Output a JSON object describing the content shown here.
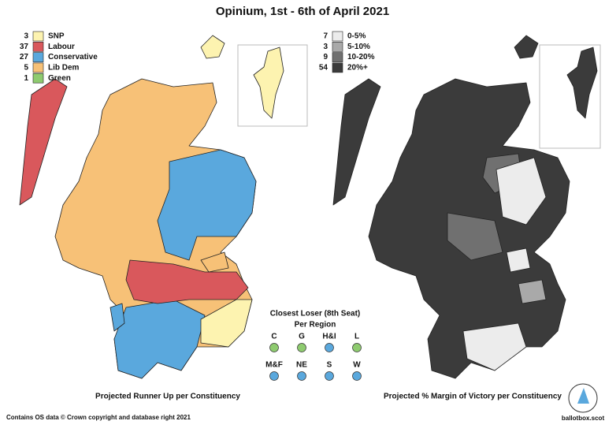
{
  "title": "Opinium, 1st - 6th of April 2021",
  "runner_up_legend": [
    {
      "count": 3,
      "label": "SNP",
      "color": "#fdf3b0"
    },
    {
      "count": 37,
      "label": "Labour",
      "color": "#d9585c"
    },
    {
      "count": 27,
      "label": "Conservative",
      "color": "#5aa8dd"
    },
    {
      "count": 5,
      "label": "Lib Dem",
      "color": "#f7c177"
    },
    {
      "count": 1,
      "label": "Green",
      "color": "#8ecb6f"
    }
  ],
  "margin_legend": [
    {
      "count": 7,
      "label": "0-5%",
      "color": "#ececec"
    },
    {
      "count": 3,
      "label": "5-10%",
      "color": "#a9a9a9"
    },
    {
      "count": 9,
      "label": "10-20%",
      "color": "#707070"
    },
    {
      "count": 54,
      "label": "20%+",
      "color": "#3b3b3b"
    }
  ],
  "runner_up_caption": "Projected Runner Up per Constituency",
  "margin_caption": "Projected % Margin of Victory per Constituency",
  "closest_loser": {
    "title": "Closest Loser (8th Seat)",
    "subtitle": "Per Region",
    "regions": [
      {
        "label": "C",
        "color": "#8ecb6f"
      },
      {
        "label": "G",
        "color": "#8ecb6f"
      },
      {
        "label": "H&I",
        "color": "#5aa8dd"
      },
      {
        "label": "L",
        "color": "#8ecb6f"
      },
      {
        "label": "M&F",
        "color": "#5aa8dd"
      },
      {
        "label": "NE",
        "color": "#5aa8dd"
      },
      {
        "label": "S",
        "color": "#5aa8dd"
      },
      {
        "label": "W",
        "color": "#5aa8dd"
      }
    ]
  },
  "footer": "Contains OS data © Crown copyright and database right 2021",
  "brand": "ballotbox.scot"
}
